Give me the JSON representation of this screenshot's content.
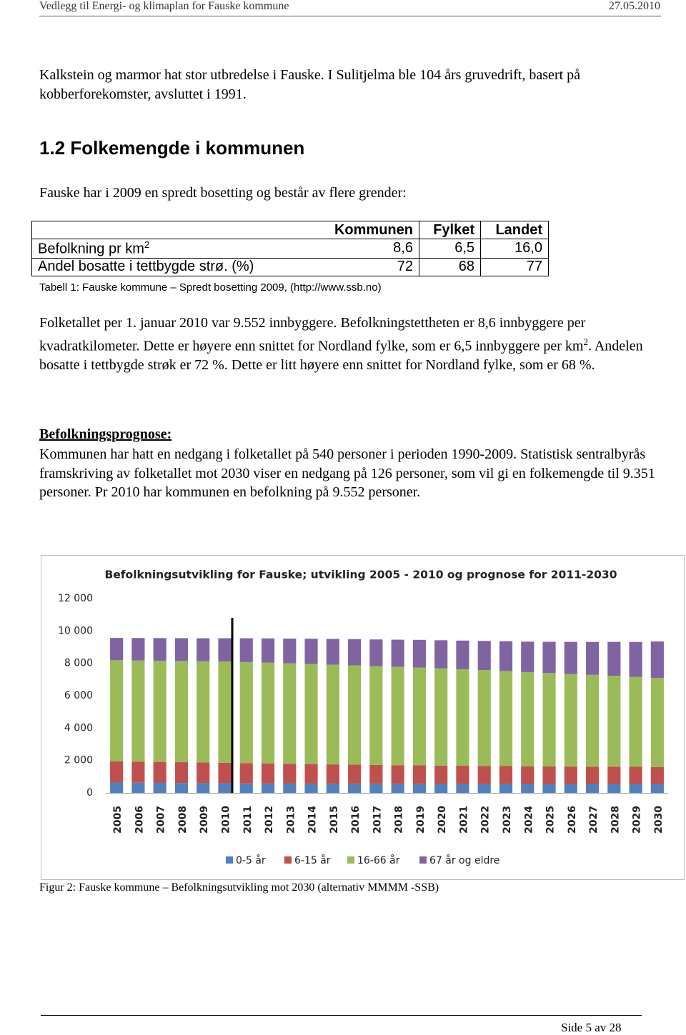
{
  "header": {
    "left": "Vedlegg til Energi- og klimaplan for Fauske kommune",
    "right": "27.05.2010"
  },
  "intro": "Kalkstein og marmor hat stor utbredelse i Fauske. I Sulitjelma ble 104 års gruvedrift, basert på kobberforekomster, avsluttet i 1991.",
  "section": {
    "heading": "1.2 Folkemengde i kommunen",
    "lead": "Fauske har i 2009 en spredt bosetting og består av flere grender:"
  },
  "table": {
    "columns": [
      "Kommunen",
      "Fylket",
      "Landet"
    ],
    "rows": [
      {
        "label": "Befolkning pr km",
        "sup": "2",
        "cells": [
          "8,6",
          "6,5",
          "16,0"
        ]
      },
      {
        "label": "Andel bosatte i tettbygde strø. (%)",
        "cells": [
          "72",
          "68",
          "77"
        ]
      }
    ],
    "caption": "Tabell 1: Fauske kommune – Spredt bosetting 2009, (http://www.ssb.no)"
  },
  "density": {
    "before": "Folketallet per 1. januar 2010 var 9.552 innbyggere. Befolkningstettheten er 8,6 innbyggere per kvadratkilometer. Dette er høyere enn snittet for Nordland fylke, som er 6,5 innbyggere per km",
    "sup": "2",
    "after": ". Andelen bosatte i tettbygde strøk er 72 %. Dette er litt høyere enn snittet for Nordland fylke, som er 68 %."
  },
  "prognosis": {
    "heading": "Befolkningsprognose:",
    "text": "Kommunen har hatt en nedgang i folketallet på 540 personer i perioden 1990-2009. Statistisk sentralbyrås framskriving av folketallet mot 2030 viser en nedgang på 126 personer, som vil gi en folkemengde til 9.351 personer. Pr 2010 har kommunen en befolkning på 9.552 personer."
  },
  "chart_data": {
    "type": "stacked-bar",
    "title": "Befolkningsutvikling for Fauske; utvikling 2005 - 2010 og prognose for 2011-2030",
    "categories": [
      "2005",
      "2006",
      "2007",
      "2008",
      "2009",
      "2010",
      "2011",
      "2012",
      "2013",
      "2014",
      "2015",
      "2016",
      "2017",
      "2018",
      "2019",
      "2020",
      "2021",
      "2022",
      "2023",
      "2024",
      "2025",
      "2026",
      "2027",
      "2028",
      "2029",
      "2030"
    ],
    "series": [
      {
        "name": "0-5 år",
        "color": "#4f81bd",
        "values": [
          640,
          630,
          620,
          610,
          600,
          590,
          585,
          580,
          575,
          570,
          565,
          565,
          560,
          560,
          560,
          555,
          555,
          555,
          555,
          550,
          550,
          550,
          550,
          550,
          550,
          550
        ]
      },
      {
        "name": "6-15 år",
        "color": "#c0504d",
        "values": [
          1300,
          1295,
          1290,
          1285,
          1280,
          1270,
          1255,
          1240,
          1225,
          1210,
          1195,
          1180,
          1165,
          1150,
          1140,
          1130,
          1120,
          1110,
          1100,
          1090,
          1080,
          1075,
          1070,
          1065,
          1060,
          1050
        ]
      },
      {
        "name": "16-66 år",
        "color": "#9bbb59",
        "values": [
          6250,
          6250,
          6250,
          6250,
          6250,
          6250,
          6240,
          6220,
          6200,
          6180,
          6160,
          6130,
          6100,
          6070,
          6040,
          6000,
          5960,
          5920,
          5870,
          5820,
          5770,
          5720,
          5670,
          5620,
          5560,
          5500
        ]
      },
      {
        "name": "67 år og eldre",
        "color": "#8064a2",
        "values": [
          1380,
          1390,
          1400,
          1410,
          1420,
          1440,
          1470,
          1500,
          1530,
          1560,
          1590,
          1620,
          1650,
          1680,
          1710,
          1740,
          1770,
          1800,
          1840,
          1880,
          1930,
          1980,
          2030,
          2090,
          2150,
          2250
        ]
      }
    ],
    "ylim": [
      0,
      12000
    ],
    "yticks": [
      0,
      {
        "value": 2000,
        "label": "2 000"
      },
      {
        "value": 4000,
        "label": "4 000"
      },
      {
        "value": 6000,
        "label": "6 000"
      },
      {
        "value": 8000,
        "label": "8 000"
      },
      {
        "value": 10000,
        "label": "10 000"
      },
      {
        "value": 12000,
        "label": "12 000"
      }
    ],
    "grid": false,
    "legend": "bottom"
  },
  "figure_caption": "Figur 2: Fauske kommune – Befolkningsutvikling mot 2030 (alternativ MMMM -SSB)",
  "footer": "Side 5 av 28"
}
